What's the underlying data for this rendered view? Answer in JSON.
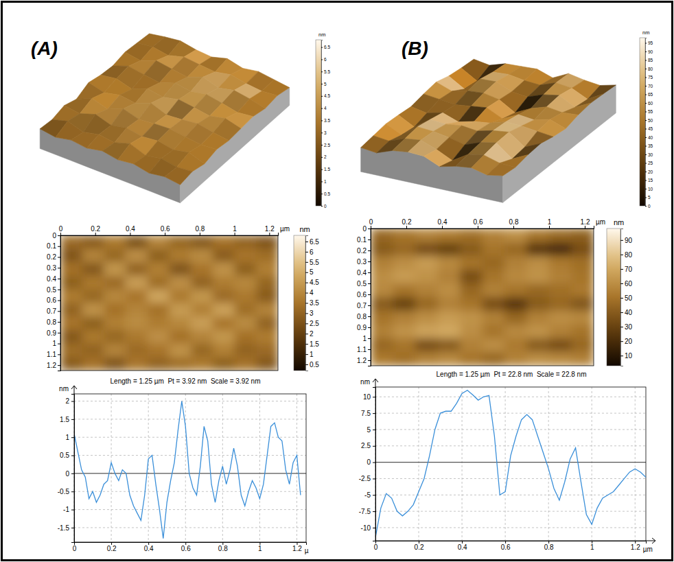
{
  "chart_data": [
    {
      "type": "heatmap",
      "title": "(A)",
      "x": [
        0,
        0.125,
        0.25,
        0.375,
        0.5,
        0.625,
        0.75,
        0.875,
        1,
        1.125,
        1.25
      ],
      "y": [
        0,
        0.125,
        0.25,
        0.375,
        0.5,
        0.625,
        0.75,
        0.875,
        1,
        1.125,
        1.25
      ],
      "xlim": [
        0,
        1.25
      ],
      "ylim": [
        0,
        1.25
      ],
      "xticks": [
        0,
        0.2,
        0.4,
        0.6,
        0.8,
        1,
        1.2
      ],
      "yticks": [
        0,
        0.1,
        0.2,
        0.3,
        0.4,
        0.5,
        0.6,
        0.7,
        0.8,
        0.9,
        1,
        1.1,
        1.2
      ],
      "x_label": "µm",
      "cells": [
        [
          3.2,
          2.8,
          3.6,
          2.5,
          3.9,
          3.1,
          2.7,
          3.4,
          3.0,
          2.6
        ],
        [
          2.6,
          3.9,
          3.1,
          4.2,
          2.9,
          3.7,
          4.1,
          2.8,
          3.5,
          3.3
        ],
        [
          3.4,
          2.7,
          4.4,
          3.0,
          3.8,
          2.6,
          3.5,
          4.3,
          2.9,
          3.8
        ],
        [
          2.9,
          3.6,
          3.2,
          4.6,
          3.3,
          4.2,
          3.0,
          3.7,
          4.0,
          3.1
        ],
        [
          3.7,
          3.1,
          4.0,
          3.5,
          4.8,
          3.6,
          4.4,
          3.2,
          3.6,
          2.8
        ],
        [
          3.0,
          4.3,
          3.4,
          3.9,
          3.4,
          4.5,
          3.8,
          4.7,
          3.3,
          3.9
        ],
        [
          3.5,
          2.9,
          3.8,
          4.1,
          3.7,
          4.0,
          4.6,
          3.5,
          4.1,
          3.0
        ],
        [
          2.7,
          3.6,
          3.1,
          3.6,
          4.2,
          3.4,
          3.9,
          4.4,
          3.4,
          3.7
        ],
        [
          3.3,
          3.0,
          3.9,
          3.2,
          3.5,
          4.3,
          3.1,
          3.8,
          3.0,
          3.2
        ],
        [
          2.8,
          3.4,
          2.6,
          3.5,
          3.0,
          3.3,
          3.6,
          2.9,
          3.4,
          2.7
        ]
      ],
      "colorbar": {
        "range": [
          0.2,
          6.8
        ],
        "ticks": [
          0.5,
          1,
          1.5,
          2,
          2.5,
          3,
          3.5,
          4,
          4.5,
          5,
          5.5,
          6,
          6.5
        ],
        "label": "nm"
      },
      "surface_colorbar": {
        "range": [
          0,
          6.8
        ],
        "ticks": [
          0,
          0.5,
          1,
          1.5,
          2,
          2.5,
          3,
          3.5,
          4,
          4.5,
          5,
          5.5,
          6,
          6.5
        ],
        "label": "nm"
      }
    },
    {
      "type": "line",
      "title": "Length = 1.25 µm  Pt = 3.92 nm  Scale = 3.92 nm",
      "x_label": "µ",
      "y_label": "nm",
      "color": "#3a8fd9",
      "grid": true,
      "xlim": [
        0,
        1.25
      ],
      "ylim": [
        -1.9,
        2.2
      ],
      "xticks": [
        0,
        0.2,
        0.4,
        0.6,
        0.8,
        1,
        1.2
      ],
      "yticks": [
        -1.5,
        -1,
        -0.5,
        0,
        0.5,
        1,
        1.5,
        2
      ],
      "x": [
        0,
        0.02,
        0.04,
        0.06,
        0.08,
        0.1,
        0.12,
        0.14,
        0.16,
        0.18,
        0.2,
        0.22,
        0.24,
        0.26,
        0.28,
        0.3,
        0.32,
        0.34,
        0.36,
        0.38,
        0.4,
        0.42,
        0.44,
        0.46,
        0.48,
        0.5,
        0.52,
        0.54,
        0.56,
        0.58,
        0.6,
        0.62,
        0.64,
        0.66,
        0.68,
        0.7,
        0.72,
        0.74,
        0.76,
        0.78,
        0.8,
        0.82,
        0.84,
        0.86,
        0.88,
        0.9,
        0.92,
        0.94,
        0.96,
        0.98,
        1,
        1.02,
        1.04,
        1.06,
        1.08,
        1.1,
        1.12,
        1.14,
        1.16,
        1.18,
        1.2,
        1.22
      ],
      "values": [
        1.1,
        0.6,
        0.1,
        -0.1,
        -0.7,
        -0.5,
        -0.8,
        -0.6,
        -0.3,
        -0.2,
        0.3,
        0.0,
        -0.2,
        0.1,
        0.0,
        -0.6,
        -0.9,
        -1.1,
        -1.3,
        -0.6,
        0.4,
        0.5,
        -0.3,
        -1.0,
        -1.8,
        -0.8,
        -0.2,
        0.3,
        1.2,
        2.0,
        1.3,
        0.0,
        -0.4,
        -0.6,
        0.2,
        1.3,
        0.9,
        -0.3,
        -0.8,
        -0.2,
        0.2,
        -0.3,
        0.1,
        0.7,
        0.2,
        -0.6,
        -0.9,
        -0.5,
        -0.2,
        -0.4,
        -0.7,
        -0.3,
        0.5,
        1.3,
        1.4,
        1.0,
        0.9,
        0.1,
        -0.3,
        0.3,
        0.5,
        -0.6
      ]
    },
    {
      "type": "heatmap",
      "title": "(B)",
      "x": [
        0,
        0.125,
        0.25,
        0.375,
        0.5,
        0.625,
        0.75,
        0.875,
        1,
        1.125,
        1.25
      ],
      "y": [
        0,
        0.125,
        0.25,
        0.375,
        0.5,
        0.625,
        0.75,
        0.875,
        1,
        1.125,
        1.25
      ],
      "xlim": [
        0,
        1.25
      ],
      "ylim": [
        0,
        1.25
      ],
      "xticks": [
        0,
        0.2,
        0.4,
        0.6,
        0.8,
        1,
        1.2
      ],
      "yticks": [
        0,
        0.1,
        0.2,
        0.3,
        0.4,
        0.5,
        0.6,
        0.7,
        0.8,
        0.9,
        1,
        1.1,
        1.2
      ],
      "x_label": "µm",
      "cells": [
        [
          45,
          50,
          55,
          52,
          48,
          55,
          60,
          50,
          45,
          42
        ],
        [
          40,
          45,
          35,
          30,
          40,
          50,
          45,
          25,
          20,
          35
        ],
        [
          55,
          60,
          65,
          58,
          50,
          45,
          55,
          60,
          52,
          48
        ],
        [
          60,
          65,
          62,
          55,
          35,
          50,
          58,
          62,
          55,
          50
        ],
        [
          58,
          50,
          55,
          60,
          45,
          55,
          50,
          45,
          48,
          52
        ],
        [
          40,
          30,
          45,
          55,
          50,
          35,
          25,
          40,
          45,
          38
        ],
        [
          50,
          55,
          60,
          65,
          62,
          55,
          45,
          55,
          60,
          58
        ],
        [
          55,
          62,
          68,
          70,
          60,
          50,
          58,
          62,
          55,
          50
        ],
        [
          45,
          50,
          35,
          40,
          55,
          60,
          52,
          40,
          35,
          45
        ],
        [
          52,
          48,
          55,
          58,
          50,
          45,
          55,
          60,
          58,
          55
        ]
      ],
      "colorbar": {
        "range": [
          3,
          98
        ],
        "ticks": [
          10,
          20,
          30,
          40,
          50,
          60,
          70,
          80,
          90
        ],
        "label": "nm"
      },
      "surface_colorbar": {
        "range": [
          0,
          98
        ],
        "ticks": [
          0,
          5,
          10,
          15,
          20,
          25,
          30,
          35,
          40,
          45,
          50,
          55,
          60,
          65,
          70,
          75,
          80,
          85,
          90,
          95
        ],
        "label": "nm"
      }
    },
    {
      "type": "line",
      "title": "Length = 1.25 µm  Pt = 22.8 nm  Scale = 22.8 nm",
      "x_label": "µm",
      "y_label": "nm",
      "color": "#3a8fd9",
      "grid": true,
      "xlim": [
        0,
        1.25
      ],
      "ylim": [
        -12,
        11.5
      ],
      "xticks": [
        0,
        0.2,
        0.4,
        0.6,
        0.8,
        1,
        1.2
      ],
      "yticks": [
        -10,
        -7.5,
        -5,
        -2.5,
        0,
        2.5,
        5,
        7.5,
        10
      ],
      "x": [
        0,
        0.025,
        0.05,
        0.075,
        0.1,
        0.125,
        0.15,
        0.175,
        0.2,
        0.225,
        0.25,
        0.275,
        0.3,
        0.325,
        0.35,
        0.375,
        0.4,
        0.425,
        0.45,
        0.475,
        0.5,
        0.525,
        0.55,
        0.575,
        0.6,
        0.625,
        0.65,
        0.675,
        0.7,
        0.725,
        0.75,
        0.775,
        0.8,
        0.825,
        0.85,
        0.875,
        0.9,
        0.925,
        0.95,
        0.975,
        1,
        1.025,
        1.05,
        1.075,
        1.1,
        1.125,
        1.15,
        1.175,
        1.2,
        1.225,
        1.25
      ],
      "values": [
        -11.5,
        -7,
        -4.8,
        -5.5,
        -7.5,
        -8.2,
        -7.5,
        -6.5,
        -4.5,
        -2.5,
        1,
        5,
        7.5,
        7.8,
        7.8,
        9,
        10.5,
        11,
        10.3,
        9.5,
        10,
        10.2,
        4,
        -5,
        -4.5,
        1,
        4,
        6.5,
        7.3,
        6.5,
        4,
        1.5,
        -1,
        -4,
        -5.8,
        -3,
        0.5,
        2.2,
        -3,
        -8,
        -9.5,
        -7,
        -5.5,
        -5,
        -4.5,
        -3.5,
        -2.5,
        -1.5,
        -1,
        -1.5,
        -2.3
      ]
    }
  ]
}
